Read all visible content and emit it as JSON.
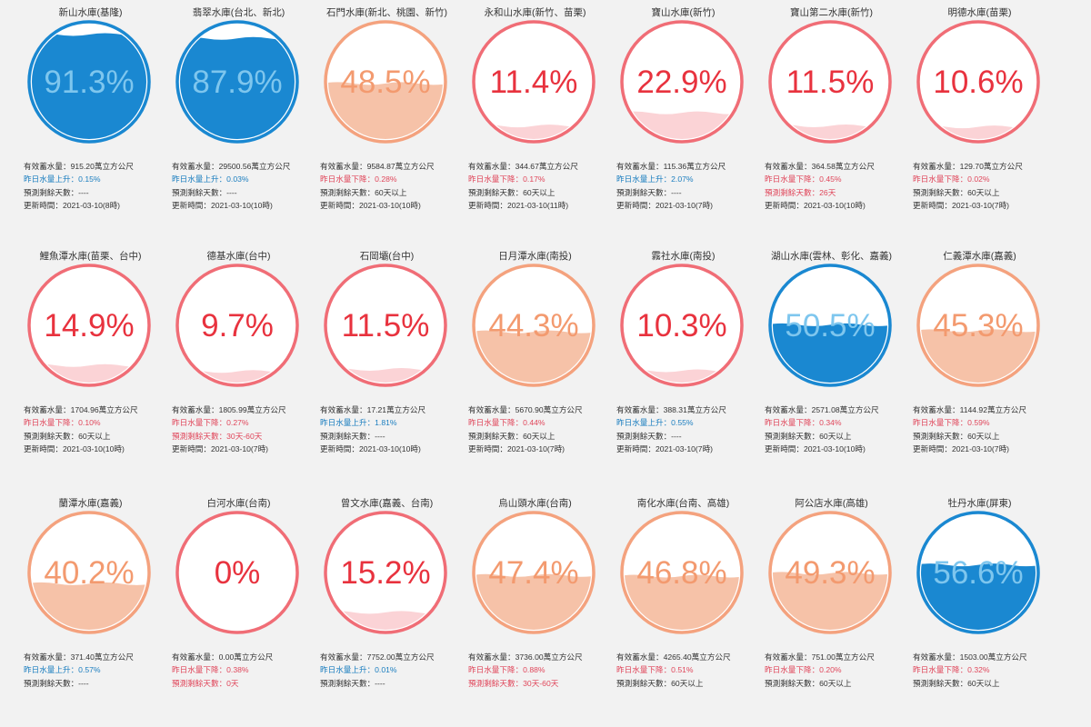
{
  "labels": {
    "storage_prefix": "有效蓄水量：",
    "forecast_prefix": "預測剩餘天數：",
    "updated_prefix": "更新時間："
  },
  "colors": {
    "blue": "#1a88d1",
    "blue_text": "#7ec6ee",
    "orange": "#f4a27e",
    "orange_fill": "#f6c2a8",
    "orange_text": "#f39a6f",
    "red": "#f06d76",
    "red_fill": "#fbd3d6",
    "red_text": "#e8323e"
  },
  "reservoirs": [
    {
      "name": "新山水庫(基隆)",
      "percent": "91.3%",
      "level": 0.913,
      "status": "blue",
      "storage": "有效蓄水量：915.20萬立方公尺",
      "change": "昨日水量上升：0.15%",
      "change_dir": "up",
      "forecast": "預測剩餘天數：----",
      "updated": "更新時間：2021-03-10(8時)"
    },
    {
      "name": "翡翠水庫(台北、新北)",
      "percent": "87.9%",
      "level": 0.879,
      "status": "blue",
      "storage": "有效蓄水量：29500.56萬立方公尺",
      "change": "昨日水量上升：0.03%",
      "change_dir": "up",
      "forecast": "預測剩餘天數：----",
      "updated": "更新時間：2021-03-10(10時)"
    },
    {
      "name": "石門水庫(新北、桃園、新竹)",
      "percent": "48.5%",
      "level": 0.485,
      "status": "orange",
      "storage": "有效蓄水量：9584.87萬立方公尺",
      "change": "昨日水量下降：0.28%",
      "change_dir": "down",
      "forecast": "預測剩餘天數：60天以上",
      "updated": "更新時間：2021-03-10(10時)"
    },
    {
      "name": "永和山水庫(新竹、苗栗)",
      "percent": "11.4%",
      "level": 0.114,
      "status": "red",
      "storage": "有效蓄水量：344.67萬立方公尺",
      "change": "昨日水量下降：0.17%",
      "change_dir": "down",
      "forecast": "預測剩餘天數：60天以上",
      "updated": "更新時間：2021-03-10(11時)"
    },
    {
      "name": "寶山水庫(新竹)",
      "percent": "22.9%",
      "level": 0.229,
      "status": "red",
      "storage": "有效蓄水量：115.36萬立方公尺",
      "change": "昨日水量上升：2.07%",
      "change_dir": "up",
      "forecast": "預測剩餘天數：----",
      "updated": "更新時間：2021-03-10(7時)"
    },
    {
      "name": "寶山第二水庫(新竹)",
      "percent": "11.5%",
      "level": 0.115,
      "status": "red",
      "storage": "有效蓄水量：364.58萬立方公尺",
      "change": "昨日水量下降：0.45%",
      "change_dir": "down",
      "forecast": "預測剩餘天數：26天",
      "updated": "更新時間：2021-03-10(10時)"
    },
    {
      "name": "明德水庫(苗栗)",
      "percent": "10.6%",
      "level": 0.106,
      "status": "red",
      "storage": "有效蓄水量：129.70萬立方公尺",
      "change": "昨日水量下降：0.02%",
      "change_dir": "down",
      "forecast": "預測剩餘天數：60天以上",
      "updated": "更新時間：2021-03-10(7時)"
    },
    {
      "name": "鯉魚潭水庫(苗栗、台中)",
      "percent": "14.9%",
      "level": 0.149,
      "status": "red",
      "storage": "有效蓄水量：1704.96萬立方公尺",
      "change": "昨日水量下降：0.10%",
      "change_dir": "down",
      "forecast": "預測剩餘天數：60天以上",
      "updated": "更新時間：2021-03-10(10時)"
    },
    {
      "name": "德基水庫(台中)",
      "percent": "9.7%",
      "level": 0.097,
      "status": "red",
      "storage": "有效蓄水量：1805.99萬立方公尺",
      "change": "昨日水量下降：0.27%",
      "change_dir": "down",
      "forecast": "預測剩餘天數：30天-60天",
      "updated": "更新時間：2021-03-10(7時)"
    },
    {
      "name": "石岡壩(台中)",
      "percent": "11.5%",
      "level": 0.115,
      "status": "red",
      "storage": "有效蓄水量：17.21萬立方公尺",
      "change": "昨日水量上升：1.81%",
      "change_dir": "up",
      "forecast": "預測剩餘天數：----",
      "updated": "更新時間：2021-03-10(10時)"
    },
    {
      "name": "日月潭水庫(南投)",
      "percent": "44.3%",
      "level": 0.443,
      "status": "orange",
      "storage": "有效蓄水量：5670.90萬立方公尺",
      "change": "昨日水量下降：0.44%",
      "change_dir": "down",
      "forecast": "預測剩餘天數：60天以上",
      "updated": "更新時間：2021-03-10(7時)"
    },
    {
      "name": "霧社水庫(南投)",
      "percent": "10.3%",
      "level": 0.103,
      "status": "red",
      "storage": "有效蓄水量：388.31萬立方公尺",
      "change": "昨日水量上升：0.55%",
      "change_dir": "up",
      "forecast": "預測剩餘天數：----",
      "updated": "更新時間：2021-03-10(7時)"
    },
    {
      "name": "湖山水庫(雲林、彰化、嘉義)",
      "percent": "50.5%",
      "level": 0.505,
      "status": "blue",
      "storage": "有效蓄水量：2571.08萬立方公尺",
      "change": "昨日水量下降：0.34%",
      "change_dir": "down",
      "forecast": "預測剩餘天數：60天以上",
      "updated": "更新時間：2021-03-10(10時)"
    },
    {
      "name": "仁義潭水庫(嘉義)",
      "percent": "45.3%",
      "level": 0.453,
      "status": "orange",
      "storage": "有效蓄水量：1144.92萬立方公尺",
      "change": "昨日水量下降：0.59%",
      "change_dir": "down",
      "forecast": "預測剩餘天數：60天以上",
      "updated": "更新時間：2021-03-10(7時)"
    },
    {
      "name": "蘭潭水庫(嘉義)",
      "percent": "40.2%",
      "level": 0.402,
      "status": "orange",
      "storage": "有效蓄水量：371.40萬立方公尺",
      "change": "昨日水量上升：0.57%",
      "change_dir": "up",
      "forecast": "預測剩餘天數：----",
      "updated": ""
    },
    {
      "name": "白河水庫(台南)",
      "percent": "0%",
      "level": 0,
      "status": "red",
      "storage": "有效蓄水量：0.00萬立方公尺",
      "change": "昨日水量下降：0.38%",
      "change_dir": "down",
      "forecast": "預測剩餘天數：0天",
      "updated": ""
    },
    {
      "name": "曾文水庫(嘉義、台南)",
      "percent": "15.2%",
      "level": 0.152,
      "status": "red",
      "storage": "有效蓄水量：7752.00萬立方公尺",
      "change": "昨日水量上升：0.01%",
      "change_dir": "up",
      "forecast": "預測剩餘天數：----",
      "updated": ""
    },
    {
      "name": "烏山頭水庫(台南)",
      "percent": "47.4%",
      "level": 0.474,
      "status": "orange",
      "storage": "有效蓄水量：3736.00萬立方公尺",
      "change": "昨日水量下降：0.88%",
      "change_dir": "down",
      "forecast": "預測剩餘天數：30天-60天",
      "updated": ""
    },
    {
      "name": "南化水庫(台南、高雄)",
      "percent": "46.8%",
      "level": 0.468,
      "status": "orange",
      "storage": "有效蓄水量：4265.40萬立方公尺",
      "change": "昨日水量下降：0.51%",
      "change_dir": "down",
      "forecast": "預測剩餘天數：60天以上",
      "updated": ""
    },
    {
      "name": "阿公店水庫(高雄)",
      "percent": "49.3%",
      "level": 0.493,
      "status": "orange",
      "storage": "有效蓄水量：751.00萬立方公尺",
      "change": "昨日水量下降：0.20%",
      "change_dir": "down",
      "forecast": "預測剩餘天數：60天以上",
      "updated": ""
    },
    {
      "name": "牡丹水庫(屏東)",
      "percent": "56.6%",
      "level": 0.566,
      "status": "blue",
      "storage": "有效蓄水量：1503.00萬立方公尺",
      "change": "昨日水量下降：0.32%",
      "change_dir": "down",
      "forecast": "預測剩餘天數：60天以上",
      "updated": ""
    }
  ]
}
